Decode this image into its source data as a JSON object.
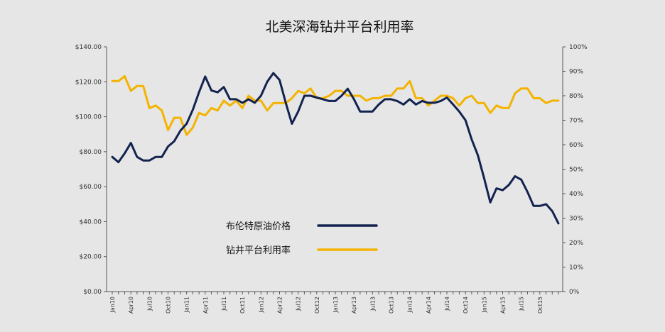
{
  "chart_data": {
    "type": "line",
    "title": "北美深海钻井平台利用率",
    "y_left": {
      "ticks": [
        "$0.00",
        "$20.00",
        "$40.00",
        "$60.00",
        "$80.00",
        "$100.00",
        "$120.00",
        "$140.00"
      ],
      "min": 0,
      "max": 140
    },
    "y_right": {
      "ticks": [
        "0%",
        "10%",
        "20%",
        "30%",
        "40%",
        "50%",
        "60%",
        "70%",
        "80%",
        "90%",
        "100%"
      ],
      "min": 0,
      "max": 100
    },
    "x_tick_labels": [
      "Jan10",
      "Apr10",
      "Jul10",
      "Oct10",
      "Jan11",
      "Apr11",
      "Jul11",
      "Oct11",
      "Jan12",
      "Apr12",
      "Jul12",
      "Oct12",
      "Jan13",
      "Apr13",
      "Jul13",
      "Oct13",
      "Jan14",
      "Apr14",
      "Jul14",
      "Oct14",
      "Jan15",
      "Apr15",
      "Jul15",
      "Oct15"
    ],
    "legend_position": "lower-center",
    "series": [
      {
        "name": "布伦特原油价格",
        "axis": "left",
        "color": "#13234f",
        "values": [
          77,
          74,
          79,
          85,
          77,
          75,
          75,
          77,
          77,
          83,
          86,
          92,
          96,
          104,
          114,
          123,
          115,
          114,
          117,
          110,
          110,
          108,
          110,
          108,
          112,
          120,
          125,
          121,
          108,
          96,
          103,
          112,
          112,
          111,
          110,
          109,
          109,
          112,
          116,
          110,
          103,
          103,
          103,
          107,
          110,
          110,
          109,
          107,
          110,
          107,
          109,
          108,
          108,
          109,
          111,
          107,
          103,
          98,
          87,
          78,
          65,
          51,
          59,
          58,
          61,
          66,
          64,
          57,
          49,
          49,
          50,
          46,
          39
        ]
      },
      {
        "name": "钻井平台利用率",
        "axis": "right",
        "color": "#f4b300",
        "values": [
          86,
          86,
          88,
          82,
          84,
          84,
          75,
          76,
          74,
          66,
          71,
          71,
          64,
          67,
          73,
          72,
          75,
          74,
          78,
          76,
          78,
          75,
          80,
          78,
          78,
          74,
          77,
          77,
          77,
          79,
          82,
          81,
          83,
          79,
          79,
          80,
          82,
          82,
          80,
          80,
          80,
          78,
          79,
          79,
          80,
          80,
          83,
          83,
          86,
          79,
          79,
          76,
          78,
          80,
          80,
          79,
          76,
          79,
          80,
          77,
          77,
          73,
          76,
          75,
          75,
          81,
          83,
          83,
          79,
          79,
          77,
          78,
          78
        ]
      }
    ]
  }
}
